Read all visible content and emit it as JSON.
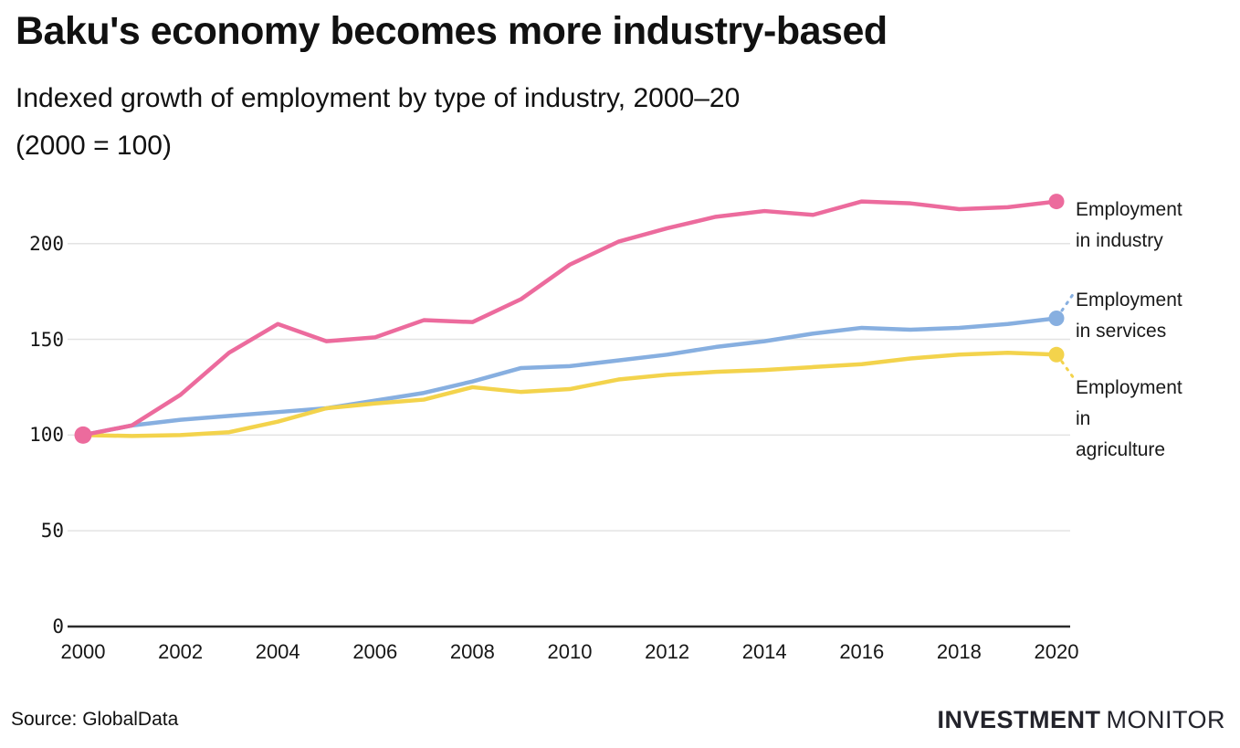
{
  "header": {
    "title": "Baku's economy becomes more industry-based",
    "subtitle": "Indexed growth of employment by type of industry, 2000–20\n(2000 = 100)"
  },
  "footer": {
    "source": "Source: GlobalData",
    "logo_bold": "INVESTMENT",
    "logo_light": "MONITOR"
  },
  "colors": {
    "industry": "#ec6b9d",
    "services": "#87afe0",
    "agriculture": "#f3d34c",
    "gridline": "#e3e3e3",
    "axis": "#2b2b2b",
    "text": "#111111"
  },
  "chart_data": {
    "type": "line",
    "title": "Baku's economy becomes more industry-based",
    "subtitle": "Indexed growth of employment by type of industry, 2000–20 (2000 = 100)",
    "x": [
      2000,
      2001,
      2002,
      2003,
      2004,
      2005,
      2006,
      2007,
      2008,
      2009,
      2010,
      2011,
      2012,
      2013,
      2014,
      2015,
      2016,
      2017,
      2018,
      2019,
      2020
    ],
    "series": [
      {
        "name": "Employment in industry",
        "label": "Employment\nin industry",
        "color": "#ec6b9d",
        "values": [
          100,
          105,
          121,
          143,
          158,
          149,
          151,
          160,
          159,
          171,
          189,
          201,
          208,
          214,
          217,
          215,
          222,
          221,
          218,
          219,
          222
        ]
      },
      {
        "name": "Employment in services",
        "label": "Employment\nin services",
        "color": "#87afe0",
        "values": [
          100,
          105,
          108,
          110,
          112,
          114,
          118,
          122,
          128,
          135,
          136,
          139,
          142,
          146,
          149,
          153,
          156,
          155,
          156,
          158,
          161
        ]
      },
      {
        "name": "Employment in agriculture",
        "label": "Employment\nin\nagriculture",
        "color": "#f3d34c",
        "values": [
          100,
          99.5,
          100,
          101.5,
          107,
          114,
          116.5,
          118.5,
          125,
          122.5,
          124,
          129,
          131.5,
          133,
          134,
          135.5,
          137,
          140,
          142,
          143,
          142
        ]
      }
    ],
    "xticks": [
      2000,
      2002,
      2004,
      2006,
      2008,
      2010,
      2012,
      2014,
      2016,
      2018,
      2020
    ],
    "yticks": [
      0,
      50,
      100,
      150,
      200
    ],
    "ylim": [
      0,
      230
    ],
    "grid": "horizontal",
    "legend_position": "right",
    "index_base": "2000 = 100"
  }
}
